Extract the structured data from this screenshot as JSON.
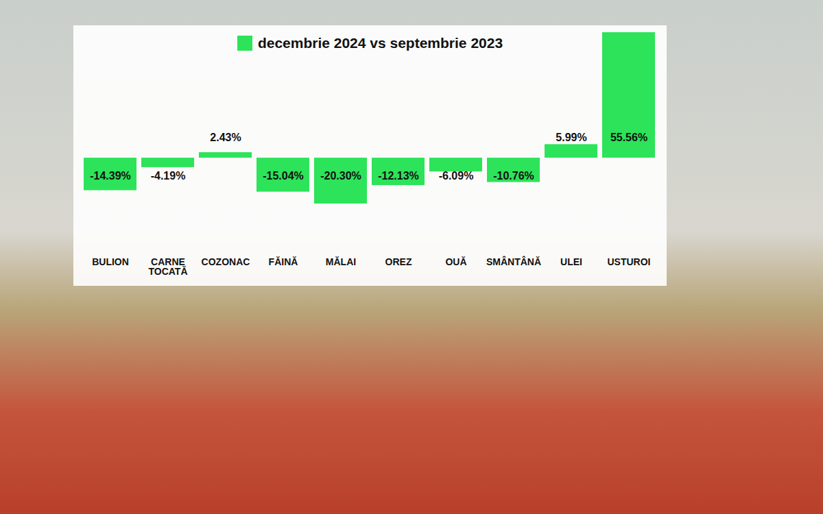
{
  "chart_data": {
    "type": "bar",
    "categories": [
      "BULION",
      "CARNE TOCATĂ",
      "COZONAC",
      "FĂINĂ",
      "MĂLAI",
      "OREZ",
      "OUĂ",
      "SMÂNTÂNĂ",
      "ULEI",
      "USTUROI"
    ],
    "series": [
      {
        "name": "decembrie 2024 vs septembrie 2023",
        "color": "#2de35a",
        "values": [
          -14.39,
          -4.19,
          2.43,
          -15.04,
          -20.3,
          -12.13,
          -6.09,
          -10.76,
          5.99,
          55.56
        ],
        "value_labels": [
          "-14.39%",
          "-4.19%",
          "2.43%",
          "-15.04%",
          "-20.30%",
          "-12.13%",
          "-6.09%",
          "-10.76%",
          "5.99%",
          "55.56%"
        ]
      }
    ],
    "legend": "top",
    "data_labels": true,
    "tick_labels": "x"
  }
}
